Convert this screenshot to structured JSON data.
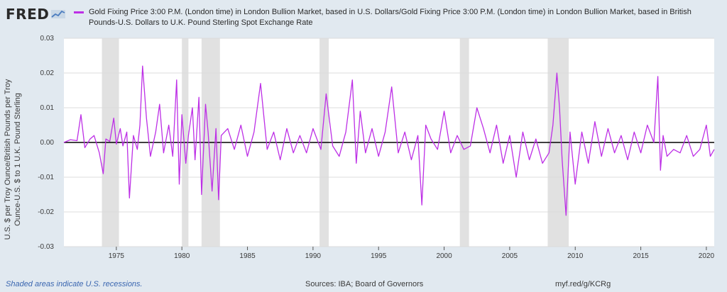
{
  "header": {
    "logo_text": "FRED",
    "logo_icon": "chart-line-icon"
  },
  "footer": {
    "recessions_note": "Shaded areas indicate U.S. recessions.",
    "sources": "Sources: IBA; Board of Governors",
    "short_url": "myf.red/g/KCRg"
  },
  "colors": {
    "series": "#bd2fe6",
    "recession": "#e1e1e1",
    "zero_line": "#000000",
    "grid": "#dcdcdc",
    "background": "#e1e9f0"
  },
  "chart_data": {
    "type": "line",
    "title": "",
    "xlabel": "",
    "ylabel": "U.S. $ per Troy Ounce/British Pounds per Troy Ounce-U.S. $ to 1 U.K. Pound Sterling",
    "ylim": [
      -0.03,
      0.03
    ],
    "xlim": [
      1971.0,
      2020.6
    ],
    "grid": "horizontal",
    "legend_position": "top",
    "series": [
      {
        "name": "Gold Fixing Price 3:00 P.M. (London time) in London Bullion Market, based in U.S. Dollars/Gold Fixing Price 3:00 P.M. (London time) in London Bullion Market, based in British Pounds-U.S. Dollars to U.K. Pound Sterling Spot Exchange Rate",
        "color": "#bd2fe6",
        "x": [
          1971.0,
          1971.5,
          1972.0,
          1972.3,
          1972.6,
          1973.0,
          1973.3,
          1973.7,
          1974.0,
          1974.2,
          1974.5,
          1974.8,
          1975.0,
          1975.3,
          1975.5,
          1975.8,
          1976.0,
          1976.3,
          1976.6,
          1976.8,
          1977.0,
          1977.3,
          1977.6,
          1978.0,
          1978.3,
          1978.6,
          1979.0,
          1979.3,
          1979.6,
          1979.8,
          1980.0,
          1980.3,
          1980.5,
          1980.8,
          1981.0,
          1981.3,
          1981.5,
          1981.8,
          1982.0,
          1982.3,
          1982.6,
          1982.8,
          1983.0,
          1983.5,
          1984.0,
          1984.5,
          1985.0,
          1985.5,
          1986.0,
          1986.5,
          1987.0,
          1987.5,
          1988.0,
          1988.5,
          1989.0,
          1989.5,
          1990.0,
          1990.3,
          1990.6,
          1991.0,
          1991.5,
          1992.0,
          1992.5,
          1993.0,
          1993.3,
          1993.6,
          1994.0,
          1994.5,
          1995.0,
          1995.5,
          1996.0,
          1996.5,
          1997.0,
          1997.5,
          1998.0,
          1998.3,
          1998.6,
          1999.0,
          1999.5,
          2000.0,
          2000.5,
          2001.0,
          2001.5,
          2002.0,
          2002.5,
          2003.0,
          2003.5,
          2004.0,
          2004.5,
          2005.0,
          2005.5,
          2006.0,
          2006.5,
          2007.0,
          2007.5,
          2008.0,
          2008.3,
          2008.6,
          2008.8,
          2009.0,
          2009.3,
          2009.6,
          2010.0,
          2010.5,
          2011.0,
          2011.5,
          2012.0,
          2012.5,
          2013.0,
          2013.5,
          2014.0,
          2014.5,
          2015.0,
          2015.5,
          2016.0,
          2016.3,
          2016.5,
          2016.7,
          2017.0,
          2017.5,
          2018.0,
          2018.5,
          2019.0,
          2019.5,
          2020.0,
          2020.3,
          2020.6
        ],
        "values": [
          0.0,
          0.0008,
          0.0005,
          0.008,
          -0.0015,
          0.001,
          0.002,
          -0.003,
          -0.009,
          0.001,
          0.0003,
          0.007,
          -0.0005,
          0.004,
          -0.001,
          0.003,
          -0.016,
          0.002,
          -0.002,
          0.005,
          0.022,
          0.007,
          -0.004,
          0.003,
          0.011,
          -0.003,
          0.005,
          -0.004,
          0.018,
          -0.012,
          0.008,
          -0.006,
          0.002,
          0.01,
          -0.005,
          0.013,
          -0.015,
          0.011,
          0.003,
          -0.014,
          0.004,
          -0.0165,
          0.002,
          0.004,
          -0.002,
          0.005,
          -0.004,
          0.003,
          0.017,
          -0.002,
          0.003,
          -0.005,
          0.004,
          -0.003,
          0.002,
          -0.003,
          0.004,
          0.001,
          -0.002,
          0.014,
          -0.001,
          -0.004,
          0.003,
          0.018,
          -0.006,
          0.009,
          -0.003,
          0.004,
          -0.004,
          0.003,
          0.016,
          -0.003,
          0.003,
          -0.005,
          0.002,
          -0.018,
          0.005,
          0.001,
          -0.002,
          0.009,
          -0.003,
          0.002,
          -0.002,
          -0.001,
          0.01,
          0.004,
          -0.003,
          0.005,
          -0.006,
          0.002,
          -0.01,
          0.003,
          -0.005,
          0.001,
          -0.006,
          -0.003,
          0.005,
          0.02,
          0.01,
          -0.005,
          -0.021,
          0.003,
          -0.012,
          0.003,
          -0.006,
          0.006,
          -0.004,
          0.004,
          -0.003,
          0.002,
          -0.005,
          0.003,
          -0.003,
          0.005,
          0.0,
          0.019,
          -0.008,
          0.002,
          -0.004,
          -0.002,
          -0.003,
          0.002,
          -0.004,
          -0.002,
          0.005,
          -0.004,
          -0.002
        ]
      }
    ],
    "recessions": [
      [
        1973.9,
        1975.2
      ],
      [
        1980.0,
        1980.5
      ],
      [
        1981.5,
        1982.9
      ],
      [
        1990.5,
        1991.2
      ],
      [
        2001.2,
        2001.9
      ],
      [
        2007.9,
        2009.5
      ]
    ],
    "y_ticks": [
      "0.03",
      "0.02",
      "0.01",
      "0.00",
      "-0.01",
      "-0.02",
      "-0.03"
    ],
    "x_ticks": [
      "1975",
      "1980",
      "1985",
      "1990",
      "1995",
      "2000",
      "2005",
      "2010",
      "2015",
      "2020"
    ]
  }
}
